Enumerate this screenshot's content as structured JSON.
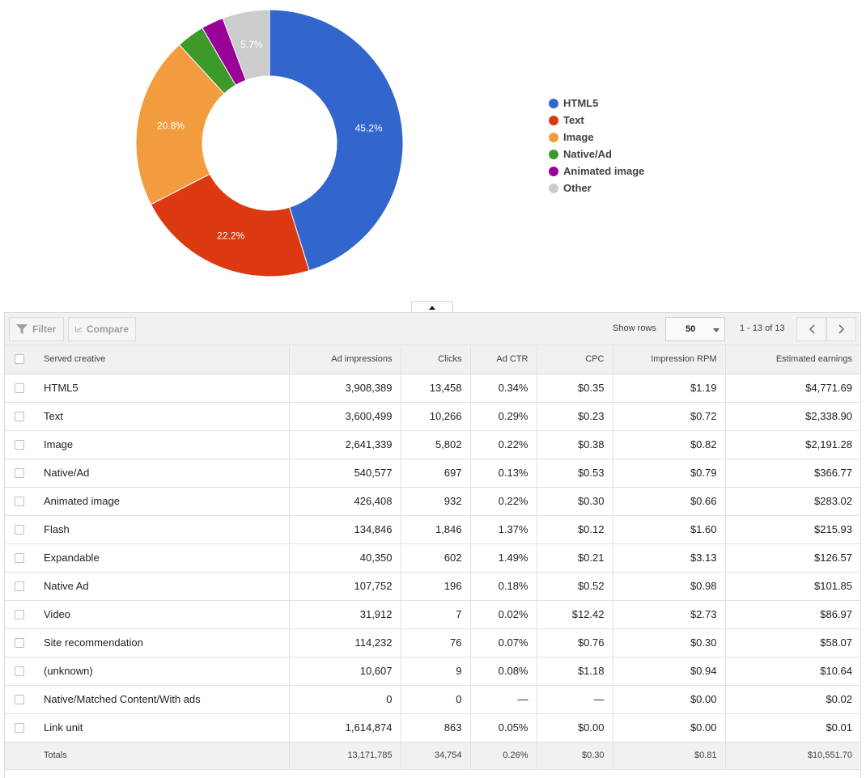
{
  "chart_data": {
    "type": "pie",
    "labels": [
      "HTML5",
      "Text",
      "Image",
      "Native/Ad",
      "Animated image",
      "Other"
    ],
    "values": [
      45.2,
      22.2,
      20.8,
      3.4,
      2.7,
      5.7
    ],
    "slice_labels": [
      "45.2%",
      "22.2%",
      "20.8%",
      "",
      "",
      "5.7%"
    ],
    "colors": [
      "#3366cc",
      "#dc3912",
      "#f39c3f",
      "#3c9a2a",
      "#990099",
      "#cccccc"
    ],
    "donut": true,
    "legend_position": "right"
  },
  "toolbar": {
    "filter_label": "Filter",
    "compare_label": "Compare",
    "show_rows_label": "Show rows",
    "rows_value": "50",
    "range_text": "1 - 13 of 13"
  },
  "table": {
    "headers": [
      "Served creative",
      "Ad impressions",
      "Clicks",
      "Ad CTR",
      "CPC",
      "Impression RPM",
      "Estimated earnings"
    ],
    "rows": [
      [
        "HTML5",
        "3,908,389",
        "13,458",
        "0.34%",
        "$0.35",
        "$1.19",
        "$4,771.69"
      ],
      [
        "Text",
        "3,600,499",
        "10,266",
        "0.29%",
        "$0.23",
        "$0.72",
        "$2,338.90"
      ],
      [
        "Image",
        "2,641,339",
        "5,802",
        "0.22%",
        "$0.38",
        "$0.82",
        "$2,191.28"
      ],
      [
        "Native/Ad",
        "540,577",
        "697",
        "0.13%",
        "$0.53",
        "$0.79",
        "$366.77"
      ],
      [
        "Animated image",
        "426,408",
        "932",
        "0.22%",
        "$0.30",
        "$0.66",
        "$283.02"
      ],
      [
        "Flash",
        "134,846",
        "1,846",
        "1.37%",
        "$0.12",
        "$1.60",
        "$215.93"
      ],
      [
        "Expandable",
        "40,350",
        "602",
        "1.49%",
        "$0.21",
        "$3.13",
        "$126.57"
      ],
      [
        "Native Ad",
        "107,752",
        "196",
        "0.18%",
        "$0.52",
        "$0.98",
        "$101.85"
      ],
      [
        "Video",
        "31,912",
        "7",
        "0.02%",
        "$12.42",
        "$2.73",
        "$86.97"
      ],
      [
        "Site recommendation",
        "114,232",
        "76",
        "0.07%",
        "$0.76",
        "$0.30",
        "$58.07"
      ],
      [
        "(unknown)",
        "10,607",
        "9",
        "0.08%",
        "$1.18",
        "$0.94",
        "$10.64"
      ],
      [
        "Native/Matched Content/With ads",
        "0",
        "0",
        "—",
        "—",
        "$0.00",
        "$0.02"
      ],
      [
        "Link unit",
        "1,614,874",
        "863",
        "0.05%",
        "$0.00",
        "$0.00",
        "$0.01"
      ]
    ],
    "totals": [
      "Totals",
      "13,171,785",
      "34,754",
      "0.26%",
      "$0.30",
      "$0.81",
      "$10,551.70"
    ]
  }
}
